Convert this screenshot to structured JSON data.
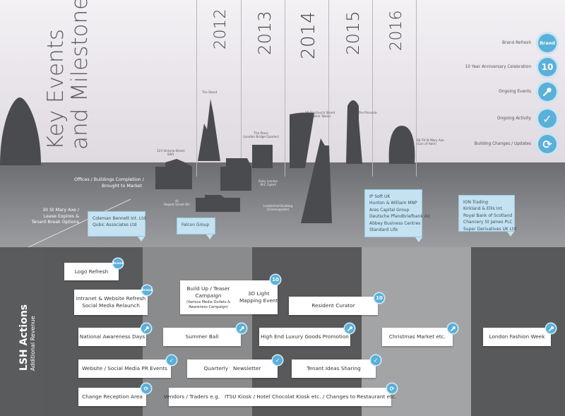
{
  "title_line1": "Key Events",
  "title_line2": "and Milestones",
  "years": [
    "2012",
    "2013",
    "2014",
    "2015",
    "2016"
  ],
  "buildings": {
    "shard": "The Shard",
    "victoria": "123 Victoria Street\nSW1",
    "place": "The Place\n(London Bridge Quarter)",
    "fenchurch": "20 Fenchurch Street\n(Walkie Talkie)",
    "pinnacle": "The Pinnacle",
    "stmaryaxe": "60-70 St Mary Axe\n(Can of Ham)",
    "regent": "4s\nRegent Street W1",
    "sixty": "Sixty London\nIN C Optell",
    "leadenhall": "Leadenhall Building\n(Cheesegrater)"
  },
  "timeline_labels": {
    "completion": "Offices / Buildings Completion /\nBrought to Market",
    "lease": "30 St Mary Axe /\nLease Expires &\nTenant Break Options"
  },
  "tenant_boxes": {
    "b1": "Coleman Bennett Int. Ltd\nQubic Associates Ltd",
    "b2": "Falcon Group",
    "b3": "IP Soft UK\nHunton & William MNP\nAres Capital Group\nDeutsche Pfandbriefbank AG\nAbbey Business Centres\nStandard Life",
    "b4": "ION Trading\nKirkland & Ellis Int.\nRoyal Bank of Scotland\nChancery St James PLC\nSuper Derivatives UK Ltd"
  },
  "legend": [
    {
      "label": "Brand Refresh",
      "icon": "brand-icon",
      "glyph": "Brand"
    },
    {
      "label": "10 Year Anniversary Celebration",
      "icon": "ten-icon",
      "glyph": "10"
    },
    {
      "label": "Ongoing Events",
      "icon": "microphone-icon",
      "glyph": "mic"
    },
    {
      "label": "Ongoing Activity",
      "icon": "check-icon",
      "glyph": "✓"
    },
    {
      "label": "Building Changes / Updates",
      "icon": "refresh-icon",
      "glyph": "⟳"
    }
  ],
  "lsh": {
    "line1": "LSH Actions",
    "line2": "Additional Revenue"
  },
  "badges": {
    "brand": "Brand",
    "ten": "10"
  },
  "actions": {
    "logo_refresh": "Logo Refresh",
    "intranet": "Intranet & Website Refresh\nSocial Media Relaunch",
    "buildup_title": "Build Up / Teaser\nCampaign",
    "buildup_sub": "(Various Media Outlets &\nAwareness Campaign)",
    "mapping": "3D Light\nMapping Event",
    "resident": "Resident Curator",
    "awareness": "National Awareness Days",
    "summer": "Summer Ball",
    "luxury": "High End Luxury Goods Promotion",
    "christmas": "Christmas Market etc.",
    "fashion": "London Fashion Week",
    "website_pr": "Website / Social Media PR Events",
    "newsletter": "Quarterly   Newsletter",
    "tenant_ideas": "Tenant Ideas Sharing",
    "reception": "Change Reception Area",
    "vendors": "Vendors / Traders e.g.   ITSU Kiosk / Hotel Chocolat Kiosk etc. / Changes to Restaurant etc."
  },
  "colors": {
    "accent": "#5ab0d9",
    "light_blue": "#c5e2f2",
    "dark": "#4a4b4e"
  }
}
